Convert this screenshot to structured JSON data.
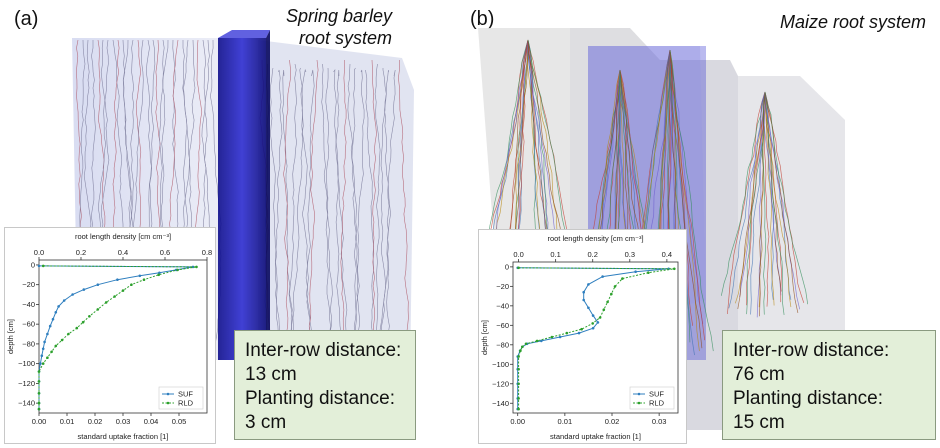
{
  "panels": [
    {
      "label": "(a)",
      "caption": [
        "Spring barley",
        "root system"
      ],
      "info": [
        "Inter-row distance:",
        "13 cm",
        "Planting distance:",
        "3 cm"
      ]
    },
    {
      "label": "(b)",
      "caption": [
        "Maize root system"
      ],
      "info": [
        "Inter-row distance:",
        "76 cm",
        "Planting distance:",
        "15 cm"
      ]
    }
  ],
  "colors": {
    "suf": "#2f7fbf",
    "rld": "#2ca02c",
    "highlight_column": "#1a1aa8",
    "info_bg": "#e3efd9"
  },
  "chart_data": [
    {
      "type": "line",
      "xlabel": "standard uptake fraction [1]",
      "x2label": "root length density [cm cm⁻³]",
      "ylabel": "depth [cm]",
      "xlim": [
        0,
        0.06
      ],
      "x2lim": [
        0,
        0.8
      ],
      "ylim": [
        -150,
        5
      ],
      "xticks": [
        "0.00",
        "0.01",
        "0.02",
        "0.03",
        "0.04",
        "0.05"
      ],
      "xtick_values": [
        0,
        0.01,
        0.02,
        0.03,
        0.04,
        0.05
      ],
      "x2ticks": [
        "0.0",
        "0.2",
        "0.4",
        "0.6",
        "0.8"
      ],
      "x2tick_values": [
        0,
        0.2,
        0.4,
        0.6,
        0.8
      ],
      "yticks": [
        "0",
        "−20",
        "−40",
        "−60",
        "−80",
        "−100",
        "−120",
        "−140"
      ],
      "ytick_values": [
        0,
        -20,
        -40,
        -60,
        -80,
        -100,
        -120,
        -140
      ],
      "series": [
        {
          "name": "SUF",
          "axis": "bottom",
          "x": [
            0.0,
            0.055,
            0.049,
            0.043,
            0.036,
            0.028,
            0.021,
            0.016,
            0.012,
            0.009,
            0.007,
            0.006,
            0.005,
            0.004,
            0.003,
            0.002,
            0.0015,
            0.001,
            0.0005,
            0.0,
            0.0,
            0.0,
            0.0,
            0.0
          ],
          "y": [
            -1,
            -2,
            -5,
            -8,
            -11,
            -15,
            -20,
            -25,
            -30,
            -36,
            -42,
            -48,
            -55,
            -62,
            -70,
            -78,
            -85,
            -92,
            -100,
            -108,
            -118,
            -130,
            -140,
            -146
          ]
        },
        {
          "name": "RLD",
          "axis": "top",
          "x": [
            0.02,
            0.75,
            0.66,
            0.57,
            0.5,
            0.44,
            0.4,
            0.36,
            0.32,
            0.28,
            0.24,
            0.21,
            0.18,
            0.14,
            0.11,
            0.08,
            0.06,
            0.04,
            0.02,
            0.0,
            0.0,
            0.0,
            0.0,
            0.0
          ],
          "y": [
            -1,
            -2,
            -5,
            -10,
            -15,
            -20,
            -26,
            -32,
            -38,
            -45,
            -52,
            -58,
            -64,
            -70,
            -76,
            -82,
            -88,
            -94,
            -100,
            -108,
            -118,
            -130,
            -140,
            -146
          ]
        }
      ]
    },
    {
      "type": "line",
      "xlabel": "standard uptake fraction [1]",
      "x2label": "root length density [cm cm⁻³]",
      "ylabel": "depth [cm]",
      "xlim": [
        -0.001,
        0.034
      ],
      "x2lim": [
        -0.015,
        0.43
      ],
      "ylim": [
        -150,
        5
      ],
      "xticks": [
        "0.00",
        "0.01",
        "0.02",
        "0.03"
      ],
      "xtick_values": [
        0,
        0.01,
        0.02,
        0.03
      ],
      "x2ticks": [
        "0.0",
        "0.1",
        "0.2",
        "0.3",
        "0.4"
      ],
      "x2tick_values": [
        0,
        0.1,
        0.2,
        0.3,
        0.4
      ],
      "yticks": [
        "0",
        "−20",
        "−40",
        "−60",
        "−80",
        "−100",
        "−120",
        "−140"
      ],
      "ytick_values": [
        0,
        -20,
        -40,
        -60,
        -80,
        -100,
        -120,
        -140
      ],
      "series": [
        {
          "name": "SUF",
          "axis": "bottom",
          "x": [
            0.0,
            0.032,
            0.025,
            0.018,
            0.015,
            0.014,
            0.014,
            0.015,
            0.016,
            0.017,
            0.016,
            0.013,
            0.009,
            0.005,
            0.002,
            0.001,
            0.0005,
            0.0,
            0.0,
            0.0,
            0.0,
            0.0
          ],
          "y": [
            -1,
            -2,
            -5,
            -10,
            -18,
            -26,
            -34,
            -42,
            -50,
            -57,
            -63,
            -68,
            -72,
            -76,
            -79,
            -82,
            -86,
            -92,
            -105,
            -120,
            -135,
            -146
          ]
        },
        {
          "name": "RLD",
          "axis": "top",
          "x": [
            0.0,
            0.42,
            0.35,
            0.28,
            0.26,
            0.25,
            0.24,
            0.23,
            0.22,
            0.2,
            0.17,
            0.13,
            0.09,
            0.05,
            0.02,
            0.01,
            0.005,
            0.0,
            0.0,
            0.0,
            0.0,
            0.0
          ],
          "y": [
            -1,
            -2,
            -6,
            -12,
            -20,
            -28,
            -36,
            -44,
            -52,
            -58,
            -64,
            -68,
            -72,
            -76,
            -79,
            -82,
            -86,
            -92,
            -105,
            -120,
            -135,
            -146
          ]
        }
      ]
    }
  ]
}
